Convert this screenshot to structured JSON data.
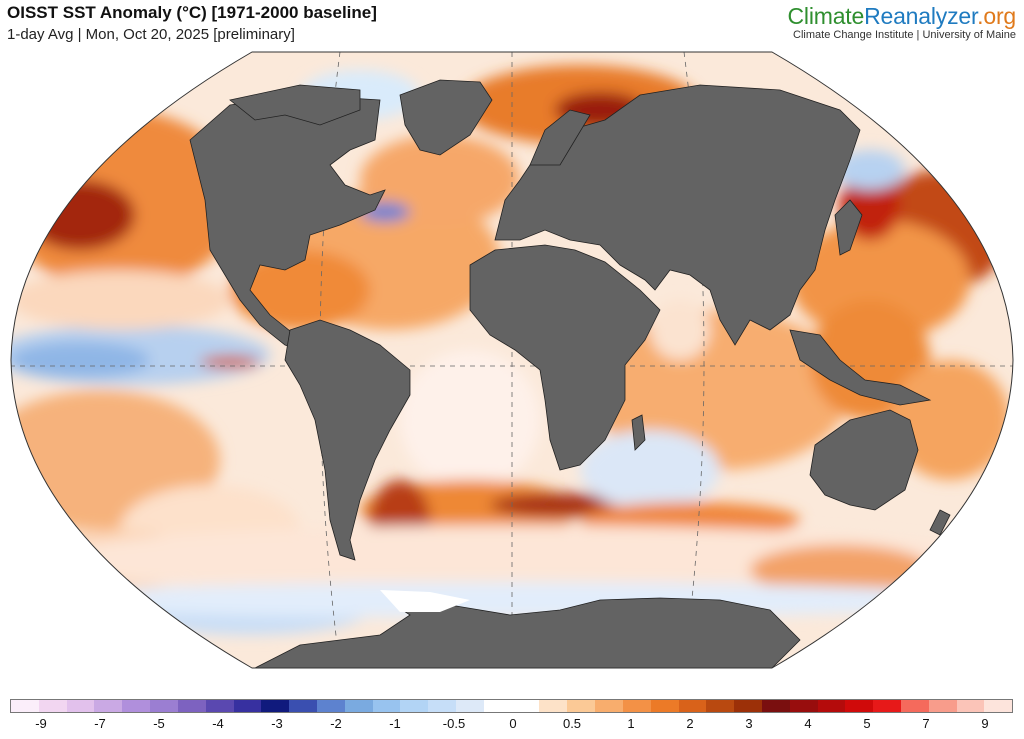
{
  "header": {
    "title": "OISST SST Anomaly (°C) [1971-2000 baseline]",
    "subtitle": "1-day Avg | Mon, Oct 20, 2025 [preliminary]"
  },
  "brand": {
    "name_climate": "Climate",
    "name_reanalyzer": "Reanalyzer",
    "name_tld": ".org",
    "tagline": "Climate Change Institute | University of Maine",
    "colors": {
      "climate": "#2f8f2f",
      "reanalyzer": "#1f7bc0",
      "tld": "#e07a1c"
    }
  },
  "map": {
    "projection": "robinson-like",
    "land_color": "#636363",
    "antarctic_ice_color": "#ffffff",
    "ocean_base_color": "#ffffff",
    "graticule": true
  },
  "colorbar": {
    "swatches": [
      "#fbeefa",
      "#f2d6f1",
      "#e2c1ec",
      "#caa9e4",
      "#b08fdc",
      "#9b7ed2",
      "#7d62c0",
      "#5a48b0",
      "#3730a0",
      "#101a7d",
      "#3a4fb0",
      "#5d82cf",
      "#7aaae0",
      "#98c3ef",
      "#b2d4f5",
      "#c6def8",
      "#dde9f8",
      "#ffffff",
      "#ffffff",
      "#fde2c8",
      "#fbc996",
      "#f8ad6d",
      "#f39146",
      "#ec7a27",
      "#d9621a",
      "#b94910",
      "#9c3008",
      "#7a0f0f",
      "#980d0d",
      "#b40b0b",
      "#d00a0a",
      "#e71919",
      "#f56a5c",
      "#f89c8b",
      "#fbc4b8",
      "#fde4dc"
    ],
    "ticks": [
      "-9",
      "-7",
      "-5",
      "-4",
      "-3",
      "-2",
      "-1",
      "-0.5",
      "0",
      "0.5",
      "1",
      "2",
      "3",
      "4",
      "5",
      "7",
      "9"
    ]
  }
}
